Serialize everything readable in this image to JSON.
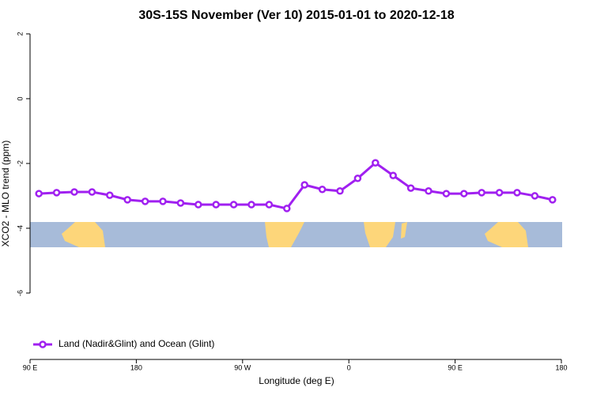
{
  "chart_data": {
    "type": "line",
    "title": "30S-15S November (Ver 10)   2015-01-01 to 2020-12-18",
    "xlabel": "Longitude (deg E)",
    "ylabel": "XCO2 - MLO trend (ppm)",
    "x": [
      97.5,
      112.5,
      127.5,
      142.5,
      157.5,
      172.5,
      187.5,
      202.5,
      217.5,
      232.5,
      247.5,
      262.5,
      277.5,
      292.5,
      307.5,
      322.5,
      337.5,
      352.5,
      367.5,
      382.5,
      397.5,
      412.5,
      427.5,
      442.5,
      457.5,
      472.5,
      487.5,
      502.5,
      517.5,
      532.5
    ],
    "series": [
      {
        "name": "Land (Nadir&Glint) and Ocean (Glint)",
        "color": "#a020f0",
        "values": [
          -2.93,
          -2.9,
          -2.88,
          -2.88,
          -2.98,
          -3.12,
          -3.17,
          -3.17,
          -3.22,
          -3.27,
          -3.27,
          -3.27,
          -3.27,
          -3.27,
          -3.39,
          -2.66,
          -2.8,
          -2.85,
          -2.46,
          -1.98,
          -2.37,
          -2.76,
          -2.85,
          -2.93,
          -2.93,
          -2.9,
          -2.9,
          -2.9,
          -3.0,
          -3.12
        ]
      }
    ],
    "xlim": [
      90,
      540
    ],
    "xticks": [
      {
        "value": 90,
        "label": "90 E"
      },
      180,
      {
        "value": 270,
        "label": "90 W"
      },
      {
        "value": 360,
        "label": "0"
      },
      {
        "value": 450,
        "label": "90 E"
      },
      {
        "value": 540,
        "label": "180"
      }
    ],
    "ylim": [
      -8.05,
      2.12
    ],
    "yticks": [
      2,
      0,
      -2,
      -4,
      -6
    ],
    "legend": "bottom-left"
  }
}
